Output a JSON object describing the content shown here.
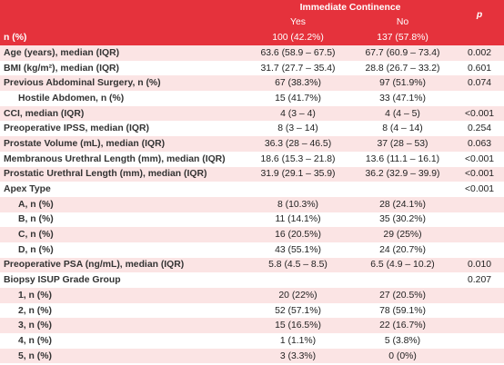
{
  "table": {
    "header": {
      "group": "Immediate Continence",
      "p": "p",
      "yes": "Yes",
      "no": "No"
    },
    "n_row": {
      "label": "n (%)",
      "yes": "100 (42.2%)",
      "no": "137 (57.8%)"
    },
    "rows": [
      {
        "label": "Age (years), median (IQR)",
        "yes": "63.6 (58.9 – 67.5)",
        "no": "67.7 (60.9 – 73.4)",
        "p": "0.002"
      },
      {
        "label": "BMI (kg/m²), median (IQR)",
        "yes": "31.7 (27.7 – 35.4)",
        "no": "28.8 (26.7 – 33.2)",
        "p": "0.601"
      },
      {
        "label": "Previous Abdominal Surgery, n (%)",
        "yes": "67 (38.3%)",
        "no": "97 (51.9%)",
        "p": "0.074",
        "sub_rows": [
          {
            "label": "Hostile Abdomen, n (%)",
            "yes": "15 (41.7%)",
            "no": "33 (47.1%)"
          }
        ]
      },
      {
        "label": "CCI, median (IQR)",
        "yes": "4 (3 – 4)",
        "no": "4 (4 – 5)",
        "p": "<0.001"
      },
      {
        "label": "Preoperative IPSS, median (IQR)",
        "yes": "8 (3 – 14)",
        "no": "8 (4 – 14)",
        "p": "0.254"
      },
      {
        "label": "Prostate Volume (mL), median (IQR)",
        "yes": "36.3 (28 – 46.5)",
        "no": "37 (28 – 53)",
        "p": "0.063"
      },
      {
        "label": "Membranous Urethral Length (mm), median (IQR)",
        "yes": "18.6 (15.3 – 21.8)",
        "no": "13.6 (11.1 – 16.1)",
        "p": "<0.001"
      },
      {
        "label": "Prostatic Urethral Length (mm), median (IQR)",
        "yes": "31.9 (29.1 – 35.9)",
        "no": "36.2 (32.9 – 39.9)",
        "p": "<0.001"
      },
      {
        "label": "Apex Type",
        "p": "<0.001",
        "sub_rows": [
          {
            "label": "A, n (%)",
            "yes": "8 (10.3%)",
            "no": "28 (24.1%)"
          },
          {
            "label": "B, n (%)",
            "yes": "11 (14.1%)",
            "no": "35 (30.2%)"
          },
          {
            "label": "C, n (%)",
            "yes": "16 (20.5%)",
            "no": "29 (25%)"
          },
          {
            "label": "D, n (%)",
            "yes": "43 (55.1%)",
            "no": "24 (20.7%)"
          }
        ]
      },
      {
        "label": "Preoperative PSA (ng/mL), median (IQR)",
        "yes": "5.8 (4.5 – 8.5)",
        "no": "6.5 (4.9 – 10.2)",
        "p": "0.010"
      },
      {
        "label": "Biopsy ISUP Grade Group",
        "p": "0.207",
        "sub_rows": [
          {
            "label": "1, n (%)",
            "yes": "20 (22%)",
            "no": "27 (20.5%)"
          },
          {
            "label": "2, n (%)",
            "yes": "52 (57.1%)",
            "no": "78 (59.1%)"
          },
          {
            "label": "3, n (%)",
            "yes": "15 (16.5%)",
            "no": "22 (16.7%)"
          },
          {
            "label": "4, n (%)",
            "yes": "1 (1.1%)",
            "no": "5 (3.8%)"
          },
          {
            "label": "5, n (%)",
            "yes": "3 (3.3%)",
            "no": "0 (0%)"
          }
        ]
      }
    ]
  }
}
